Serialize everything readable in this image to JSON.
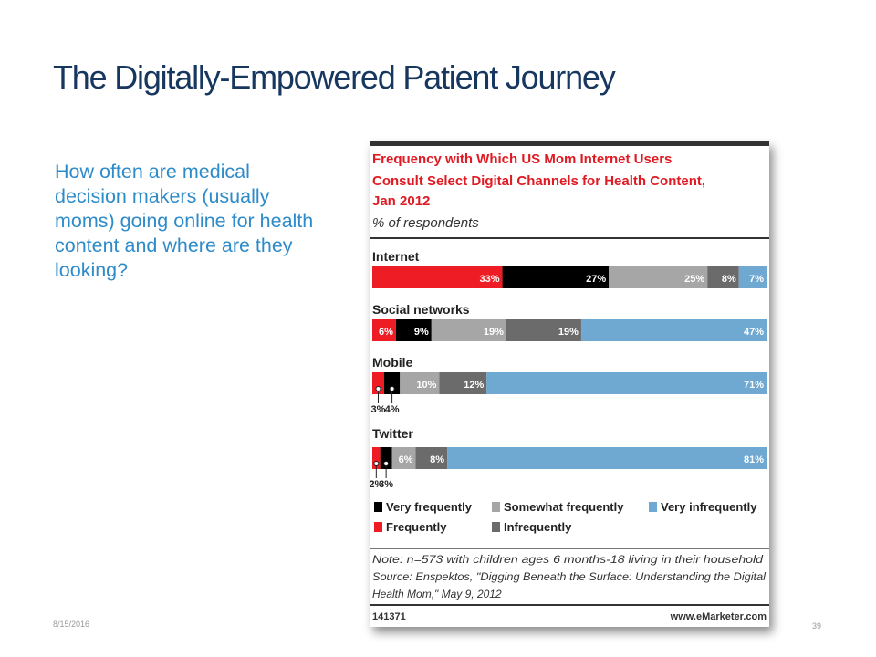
{
  "slide": {
    "title": "The Digitally-Empowered Patient Journey",
    "body_lines": [
      "How often are medical",
      "decision makers (usually",
      "moms) going online for health",
      "content and where are they",
      "looking?"
    ],
    "date": "8/15/2016",
    "page_number": "39"
  },
  "colors": {
    "title": "#17375e",
    "body": "#2e8bc9",
    "chart_title": "#e01a22",
    "very_frequently": "#000000",
    "frequently": "#ee1c24",
    "somewhat_frequently": "#a6a6a6",
    "infrequently": "#6b6b6b",
    "very_infrequently": "#6fa8d0"
  },
  "chart_data": {
    "type": "bar",
    "orientation": "horizontal-stacked-100",
    "title_lines": [
      "Frequency with Which US Mom Internet Users",
      "Consult Select Digital Channels for Health Content,",
      "Jan 2012"
    ],
    "subtitle": "% of respondents",
    "categories": [
      "Internet",
      "Social networks",
      "Mobile",
      "Twitter"
    ],
    "series": [
      {
        "name": "Frequently",
        "color": "#ee1c24",
        "values": [
          33,
          6,
          3,
          2
        ],
        "labels": [
          "33%",
          "6%",
          "3%",
          "2%"
        ]
      },
      {
        "name": "Very frequently",
        "color": "#000000",
        "values": [
          27,
          9,
          4,
          3
        ],
        "labels": [
          "27%",
          "9%",
          "4%",
          "3%"
        ]
      },
      {
        "name": "Somewhat frequently",
        "color": "#a6a6a6",
        "values": [
          25,
          19,
          10,
          6
        ],
        "labels": [
          "25%",
          "19%",
          "10%",
          "6%"
        ]
      },
      {
        "name": "Infrequently",
        "color": "#6b6b6b",
        "values": [
          8,
          19,
          12,
          8
        ],
        "labels": [
          "8%",
          "19%",
          "12%",
          "8%"
        ]
      },
      {
        "name": "Very infrequently",
        "color": "#6fa8d0",
        "values": [
          7,
          47,
          71,
          81
        ],
        "labels": [
          "7%",
          "47%",
          "71%",
          "81%"
        ]
      }
    ],
    "legend": {
      "placement": "bottom",
      "row1": [
        "Very frequently",
        "Somewhat frequently",
        "Very infrequently"
      ],
      "row2": [
        "Frequently",
        "Infrequently"
      ]
    },
    "notes": [
      "Note: n=573 with children ages 6 months-18 living in their household",
      "Source: Enspektos, \"Digging Beneath the Surface: Understanding the Digital",
      "Health Mom,\" May 9, 2012"
    ],
    "chart_id": "141371",
    "source_url": "www.eMarketer.com"
  }
}
